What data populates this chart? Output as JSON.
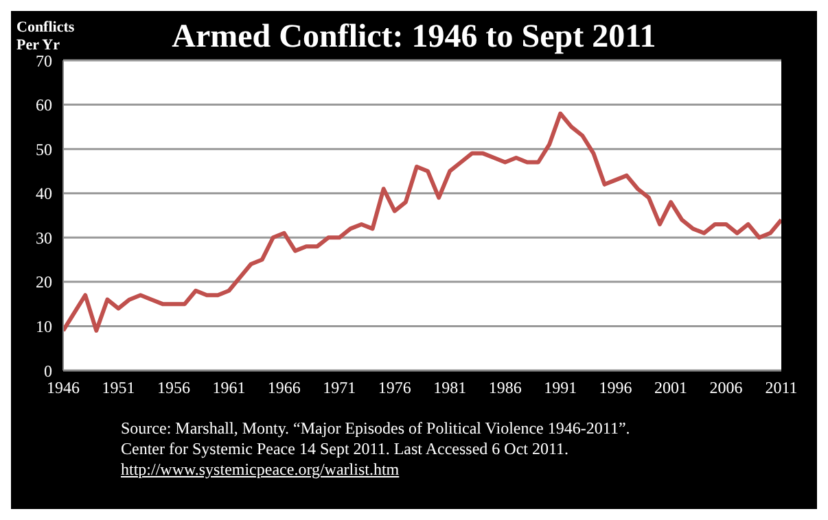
{
  "chart_data": {
    "type": "line",
    "title": "Armed Conflict: 1946 to Sept 2011",
    "ylabel": "Conflicts Per Yr",
    "x": [
      1946,
      1947,
      1948,
      1949,
      1950,
      1951,
      1952,
      1953,
      1954,
      1955,
      1956,
      1957,
      1958,
      1959,
      1960,
      1961,
      1962,
      1963,
      1964,
      1965,
      1966,
      1967,
      1968,
      1969,
      1970,
      1971,
      1972,
      1973,
      1974,
      1975,
      1976,
      1977,
      1978,
      1979,
      1980,
      1981,
      1982,
      1983,
      1984,
      1985,
      1986,
      1987,
      1988,
      1989,
      1990,
      1991,
      1992,
      1993,
      1994,
      1995,
      1996,
      1997,
      1998,
      1999,
      2000,
      2001,
      2002,
      2003,
      2004,
      2005,
      2006,
      2007,
      2008,
      2009,
      2010,
      2011
    ],
    "series": [
      {
        "color": "#c0504d",
        "values": [
          9,
          13,
          17,
          9,
          16,
          14,
          16,
          17,
          16,
          15,
          15,
          15,
          18,
          17,
          17,
          18,
          21,
          24,
          25,
          30,
          31,
          27,
          28,
          28,
          30,
          30,
          32,
          33,
          32,
          41,
          36,
          38,
          46,
          45,
          39,
          45,
          47,
          49,
          49,
          48,
          47,
          48,
          47,
          47,
          51,
          58,
          55,
          53,
          49,
          42,
          43,
          44,
          41,
          39,
          33,
          38,
          34,
          32,
          31,
          33,
          33,
          31,
          33,
          30,
          31,
          34
        ]
      }
    ],
    "xlim": [
      1946,
      2011
    ],
    "xticks": [
      1946,
      1951,
      1956,
      1961,
      1966,
      1971,
      1976,
      1981,
      1986,
      1991,
      1996,
      2001,
      2006,
      2011
    ],
    "ylim": [
      0,
      70
    ],
    "yticks": [
      0,
      10,
      20,
      30,
      40,
      50,
      60,
      70
    ],
    "grid": "y",
    "legend": false,
    "marker": "none",
    "line_style": "solid",
    "annotations": [
      "Source:  Marshall, Monty. “Major Episodes of Political Violence 1946-2011”.",
      "Center for Systemic Peace  14 Sept 2011.  Last Accessed 6 Oct 2011.",
      "http://www.systemicpeace.org/warlist.htm"
    ]
  }
}
